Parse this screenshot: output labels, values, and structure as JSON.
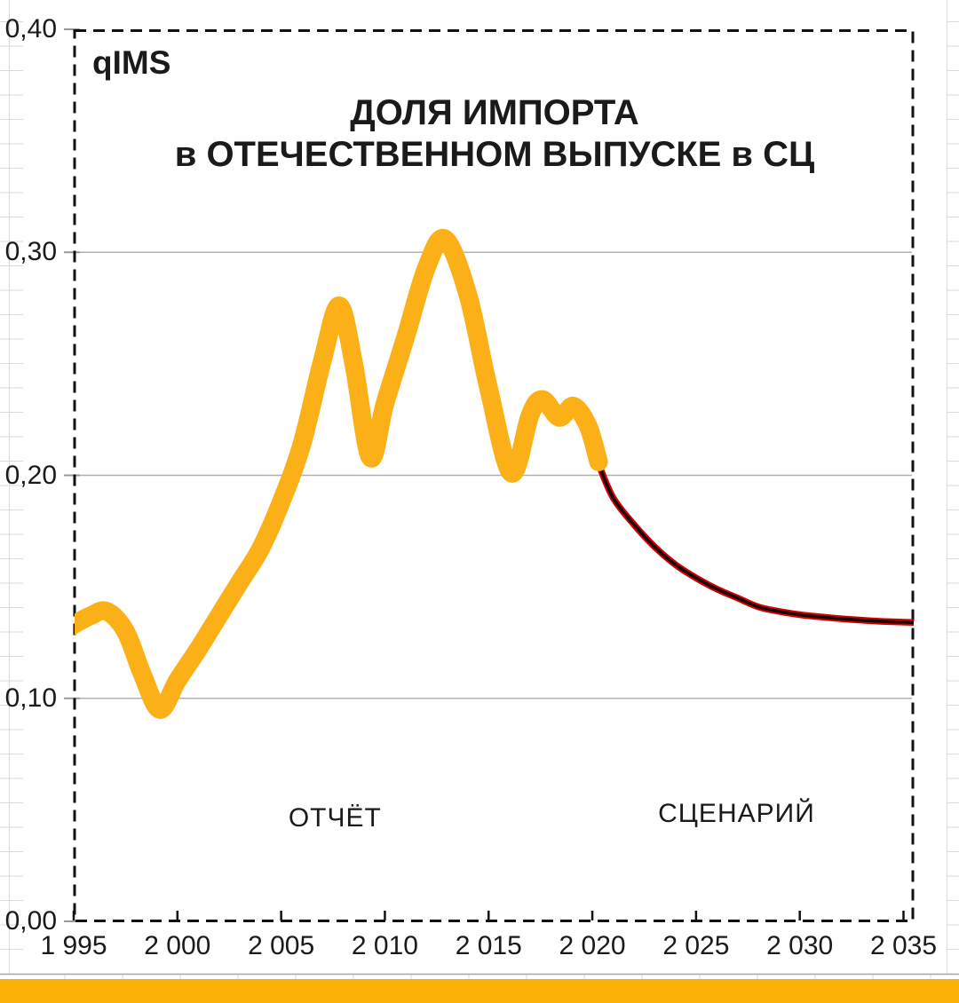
{
  "chart_data": {
    "type": "line",
    "title_lines": [
      "ДОЛЯ ИМПОРТА",
      "в ОТЕЧЕСТВЕННОМ ВЫПУСКЕ в СЦ"
    ],
    "axis_label": "qIMS",
    "xlabel": "",
    "ylabel": "",
    "xlim": [
      1995,
      2035.47
    ],
    "ylim": [
      0.0,
      0.4
    ],
    "grid": "horizontal",
    "grid_values": [
      0.1,
      0.2,
      0.3
    ],
    "x_ticks": [
      {
        "label": "1 995",
        "year": 1995
      },
      {
        "label": "2 000",
        "year": 2000
      },
      {
        "label": "2 005",
        "year": 2005
      },
      {
        "label": "2 010",
        "year": 2010
      },
      {
        "label": "2 015",
        "year": 2015
      },
      {
        "label": "2 020",
        "year": 2020
      },
      {
        "label": "2 025",
        "year": 2025
      },
      {
        "label": "2 030",
        "year": 2030
      },
      {
        "label": "2 035",
        "year": 2035
      }
    ],
    "y_ticks": [
      {
        "label": "0,00",
        "value": 0.0
      },
      {
        "label": "0,10",
        "value": 0.1
      },
      {
        "label": "0,20",
        "value": 0.2
      },
      {
        "label": "0,30",
        "value": 0.3
      },
      {
        "label": "0,40",
        "value": 0.4
      }
    ],
    "series": [
      {
        "name": "ОТЧЁТ",
        "role": "actual",
        "color": "#FBB018",
        "stroke_width": 21,
        "x": [
          1994.8,
          1995.8,
          1996.6,
          1997.5,
          1998.3,
          1999.15,
          2000,
          2001,
          2002,
          2003,
          2004,
          2005,
          2006,
          2007,
          2007.8,
          2008.5,
          2009.3,
          2010,
          2011,
          2012,
          2012.9,
          2014,
          2015,
          2016.1,
          2017,
          2017.6,
          2018.4,
          2019.1,
          2019.8,
          2020.3
        ],
        "y": [
          0.132,
          0.137,
          0.139,
          0.13,
          0.111,
          0.095,
          0.108,
          0.122,
          0.137,
          0.152,
          0.167,
          0.188,
          0.214,
          0.252,
          0.276,
          0.25,
          0.208,
          0.232,
          0.262,
          0.293,
          0.306,
          0.281,
          0.239,
          0.201,
          0.227,
          0.234,
          0.226,
          0.231,
          0.222,
          0.206
        ]
      },
      {
        "name": "СЦЕНАРИЙ",
        "role": "scenario",
        "color": "#D40000",
        "core_color": "#1A0303",
        "stroke_width": 7.5,
        "core_width": 3.6,
        "x": [
          2020.3,
          2021,
          2022,
          2023,
          2024,
          2025,
          2026,
          2027,
          2028,
          2029,
          2030,
          2031,
          2032,
          2033,
          2034,
          2035.47
        ],
        "y": [
          0.205,
          0.19,
          0.178,
          0.168,
          0.16,
          0.154,
          0.149,
          0.145,
          0.141,
          0.139,
          0.1375,
          0.1365,
          0.1357,
          0.135,
          0.1345,
          0.134
        ]
      }
    ],
    "annotations": [
      {
        "text": "ОТЧЁТ",
        "x": 2007.6,
        "y": 0.046
      },
      {
        "text": "СЦЕНАРИЙ",
        "x": 2026.95,
        "y": 0.048
      }
    ],
    "legend": "none"
  },
  "colors": {
    "plot_border": "#111111",
    "gridline": "#B0B0B0",
    "tick": "#999999",
    "worksheet_grid": "#DADADA",
    "chart_object_border": "#A6A6A6",
    "bottom_bar": "#FBB105",
    "text": "#1a1a1a"
  }
}
